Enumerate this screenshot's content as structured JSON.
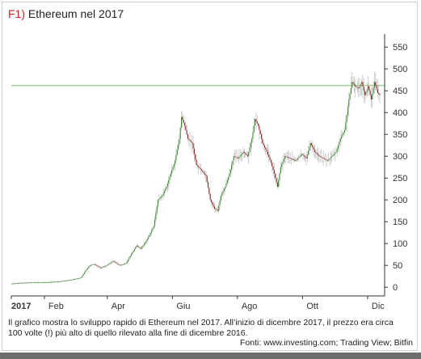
{
  "header": {
    "title_prefix": "F1)",
    "title": "Ethereum nel 2017"
  },
  "caption": "Il grafico mostra lo sviluppo rapido di Ethereum nel 2017. All’inizio di dicembre 2017, il prezzo era circa 100 volte (!) più alto di quello rilevato alla fine di dicembre 2016.",
  "source": "Fonti: www.investing.com; Trading View; Bitfin",
  "colors": {
    "up": "#3a8a2e",
    "down": "#8b1e1e",
    "reference_line": "#8fd07f",
    "axis": "#333333"
  },
  "chart_data": {
    "type": "candlestick",
    "title": "Ethereum nel 2017",
    "y_ticks": [
      0,
      50,
      100,
      150,
      200,
      250,
      300,
      350,
      400,
      450,
      500,
      550
    ],
    "y_range": [
      -20,
      580
    ],
    "x_ticks": [
      {
        "label": "2017",
        "day": 0
      },
      {
        "label": "Feb",
        "day": 31
      },
      {
        "label": "Apr",
        "day": 90
      },
      {
        "label": "Giu",
        "day": 151
      },
      {
        "label": "Ago",
        "day": 212
      },
      {
        "label": "Ott",
        "day": 273
      },
      {
        "label": "Dic",
        "day": 334
      }
    ],
    "x_range": [
      0,
      350
    ],
    "reference_line": 462,
    "price_path": [
      [
        0,
        8
      ],
      [
        10,
        10
      ],
      [
        20,
        11
      ],
      [
        31,
        11
      ],
      [
        45,
        13
      ],
      [
        59,
        18
      ],
      [
        66,
        22
      ],
      [
        70,
        38
      ],
      [
        74,
        50
      ],
      [
        78,
        53
      ],
      [
        84,
        44
      ],
      [
        90,
        50
      ],
      [
        96,
        60
      ],
      [
        102,
        50
      ],
      [
        108,
        55
      ],
      [
        114,
        80
      ],
      [
        118,
        95
      ],
      [
        122,
        88
      ],
      [
        128,
        110
      ],
      [
        134,
        140
      ],
      [
        138,
        200
      ],
      [
        142,
        210
      ],
      [
        146,
        230
      ],
      [
        150,
        260
      ],
      [
        154,
        290
      ],
      [
        158,
        340
      ],
      [
        160,
        390
      ],
      [
        163,
        370
      ],
      [
        166,
        340
      ],
      [
        170,
        330
      ],
      [
        174,
        280
      ],
      [
        178,
        270
      ],
      [
        183,
        255
      ],
      [
        187,
        200
      ],
      [
        191,
        180
      ],
      [
        194,
        175
      ],
      [
        197,
        210
      ],
      [
        201,
        230
      ],
      [
        205,
        260
      ],
      [
        209,
        300
      ],
      [
        213,
        295
      ],
      [
        218,
        310
      ],
      [
        222,
        300
      ],
      [
        226,
        340
      ],
      [
        229,
        385
      ],
      [
        232,
        370
      ],
      [
        236,
        330
      ],
      [
        240,
        310
      ],
      [
        244,
        285
      ],
      [
        247,
        260
      ],
      [
        250,
        230
      ],
      [
        253,
        275
      ],
      [
        257,
        300
      ],
      [
        262,
        295
      ],
      [
        267,
        290
      ],
      [
        273,
        305
      ],
      [
        277,
        295
      ],
      [
        281,
        330
      ],
      [
        285,
        310
      ],
      [
        289,
        300
      ],
      [
        293,
        295
      ],
      [
        297,
        290
      ],
      [
        301,
        300
      ],
      [
        305,
        310
      ],
      [
        309,
        340
      ],
      [
        313,
        360
      ],
      [
        317,
        430
      ],
      [
        320,
        470
      ],
      [
        323,
        460
      ],
      [
        326,
        455
      ],
      [
        329,
        470
      ],
      [
        332,
        440
      ],
      [
        335,
        460
      ],
      [
        338,
        430
      ],
      [
        341,
        470
      ],
      [
        344,
        445
      ],
      [
        346,
        440
      ]
    ]
  }
}
